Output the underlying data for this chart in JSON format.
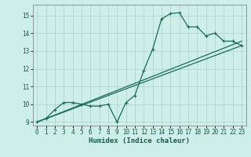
{
  "title": "",
  "xlabel": "Humidex (Indice chaleur)",
  "bg_color": "#ceeee8",
  "grid_color": "#b8d8d2",
  "line_color": "#1a6b5a",
  "xlim": [
    -0.5,
    23.5
  ],
  "ylim": [
    8.8,
    15.6
  ],
  "yticks": [
    9,
    10,
    11,
    12,
    13,
    14,
    15
  ],
  "xticks": [
    0,
    1,
    2,
    3,
    4,
    5,
    6,
    7,
    8,
    9,
    10,
    11,
    12,
    13,
    14,
    15,
    16,
    17,
    18,
    19,
    20,
    21,
    22,
    23
  ],
  "curve1_x": [
    0,
    1,
    2,
    3,
    4,
    5,
    6,
    7,
    8,
    9,
    10,
    11,
    12,
    13,
    14,
    15,
    16,
    17,
    18,
    19,
    20,
    21,
    22,
    23
  ],
  "curve1_y": [
    9.0,
    9.2,
    9.7,
    10.1,
    10.1,
    10.0,
    9.9,
    9.9,
    10.0,
    9.0,
    10.1,
    10.5,
    11.9,
    13.1,
    14.8,
    15.1,
    15.15,
    14.35,
    14.35,
    13.85,
    14.0,
    13.55,
    13.55,
    13.3
  ],
  "line2_x": [
    0,
    23
  ],
  "line2_y": [
    9.0,
    13.55
  ],
  "line3_x": [
    0,
    23
  ],
  "line3_y": [
    9.0,
    13.3
  ],
  "marker_size": 2.5,
  "linewidth": 0.9
}
